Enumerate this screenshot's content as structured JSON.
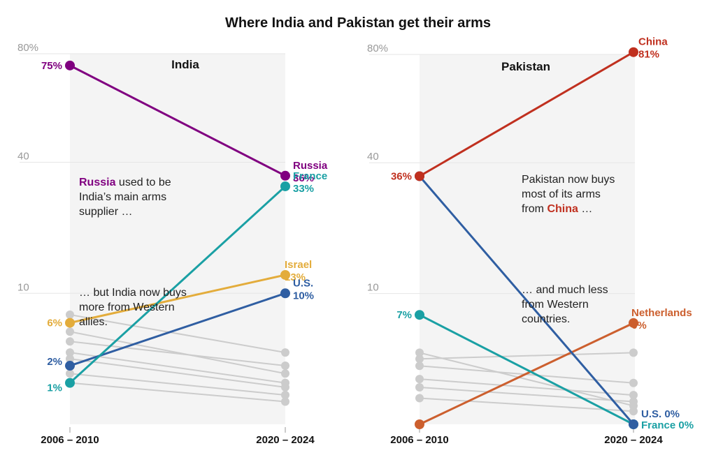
{
  "title": "Where India and Pakistan get their arms",
  "colors": {
    "russia": "#800080",
    "france": "#1aa0a4",
    "israel": "#e3ac3b",
    "us": "#2f5ea2",
    "china": "#c0301f",
    "netherlands": "#cc5f2e",
    "other": "#cccccc"
  },
  "chart_data": [
    {
      "type": "line",
      "title": "India",
      "x": [
        "2006 – 2010",
        "2020 – 2024"
      ],
      "y_ticks": [
        10,
        40,
        80
      ],
      "y_scale": "sqrt",
      "ylim": [
        0,
        80
      ],
      "series": [
        {
          "name": "Russia",
          "values": [
            75,
            36
          ],
          "color_key": "russia",
          "labels": [
            "75%",
            "36%"
          ]
        },
        {
          "name": "France",
          "values": [
            1,
            33
          ],
          "color_key": "france",
          "labels": [
            "1%",
            "33%"
          ]
        },
        {
          "name": "Israel",
          "values": [
            6,
            13
          ],
          "color_key": "israel",
          "labels": [
            "6%",
            "13%"
          ]
        },
        {
          "name": "U.S.",
          "values": [
            2,
            10
          ],
          "color_key": "us",
          "labels": [
            "2%",
            "10%"
          ]
        }
      ],
      "other_series": [
        {
          "values": [
            7,
            3
          ]
        },
        {
          "values": [
            5,
            1.5
          ]
        },
        {
          "values": [
            4,
            2
          ]
        },
        {
          "values": [
            3,
            1
          ]
        },
        {
          "values": [
            2.5,
            0.8
          ]
        },
        {
          "values": [
            1.5,
            0.5
          ]
        },
        {
          "values": [
            1,
            0.3
          ]
        }
      ],
      "annotations": [
        {
          "lines": [
            [
              {
                "t": "Russia",
                "c": "russia"
              },
              {
                "t": " used to be"
              }
            ],
            [
              {
                "t": "India’s main arms"
              }
            ],
            [
              {
                "t": "supplier …"
              }
            ]
          ]
        },
        {
          "lines": [
            [
              {
                "t": "… but India now buys"
              }
            ],
            [
              {
                "t": "more from Western"
              }
            ],
            [
              {
                "t": "allies."
              }
            ]
          ]
        }
      ]
    },
    {
      "type": "line",
      "title": "Pakistan",
      "x": [
        "2006 – 2010",
        "2020 – 2024"
      ],
      "y_ticks": [
        10,
        40,
        80
      ],
      "y_scale": "sqrt",
      "ylim": [
        0,
        80
      ],
      "series": [
        {
          "name": "China",
          "values": [
            36,
            81
          ],
          "color_key": "china",
          "labels": [
            "36%",
            "81%"
          ]
        },
        {
          "name": "U.S.",
          "values": [
            36,
            0
          ],
          "color_key": "us",
          "labels": [
            "",
            "0%"
          ]
        },
        {
          "name": "France",
          "values": [
            7,
            0
          ],
          "color_key": "france",
          "labels": [
            "7%",
            "0%"
          ]
        },
        {
          "name": "Netherlands",
          "values": [
            0,
            6
          ],
          "color_key": "netherlands",
          "labels": [
            "",
            "6%"
          ]
        }
      ],
      "other_series": [
        {
          "values": [
            3,
            0.2
          ]
        },
        {
          "values": [
            2.5,
            3
          ]
        },
        {
          "values": [
            2,
            1
          ]
        },
        {
          "values": [
            1.2,
            0.5
          ]
        },
        {
          "values": [
            0.8,
            0.3
          ]
        },
        {
          "values": [
            0.4,
            0.1
          ]
        }
      ],
      "annotations": [
        {
          "lines": [
            [
              {
                "t": "Pakistan now buys"
              }
            ],
            [
              {
                "t": "most of its arms"
              }
            ],
            [
              {
                "t": "from "
              },
              {
                "t": "China",
                "c": "china"
              },
              {
                "t": " …"
              }
            ]
          ]
        },
        {
          "lines": [
            [
              {
                "t": "… and much less"
              }
            ],
            [
              {
                "t": "from Western"
              }
            ],
            [
              {
                "t": "countries."
              }
            ]
          ]
        }
      ]
    }
  ]
}
